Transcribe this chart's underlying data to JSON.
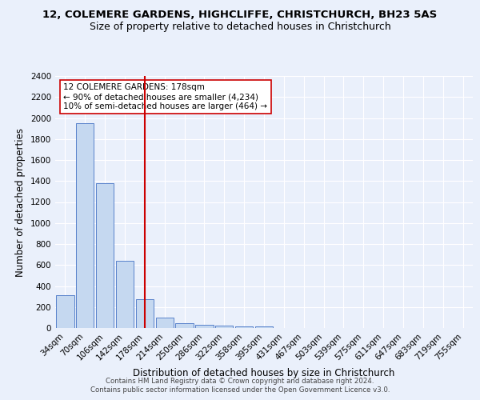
{
  "title": "12, COLEMERE GARDENS, HIGHCLIFFE, CHRISTCHURCH, BH23 5AS",
  "subtitle": "Size of property relative to detached houses in Christchurch",
  "xlabel": "Distribution of detached houses by size in Christchurch",
  "ylabel": "Number of detached properties",
  "bin_labels": [
    "34sqm",
    "70sqm",
    "106sqm",
    "142sqm",
    "178sqm",
    "214sqm",
    "250sqm",
    "286sqm",
    "322sqm",
    "358sqm",
    "395sqm",
    "431sqm",
    "467sqm",
    "503sqm",
    "539sqm",
    "575sqm",
    "611sqm",
    "647sqm",
    "683sqm",
    "719sqm",
    "755sqm"
  ],
  "bar_values": [
    315,
    1950,
    1380,
    640,
    275,
    100,
    48,
    30,
    20,
    15,
    18,
    0,
    0,
    0,
    0,
    0,
    0,
    0,
    0,
    0,
    0
  ],
  "bar_color": "#c5d8f0",
  "bar_edge_color": "#4472c4",
  "property_line_color": "#cc0000",
  "annotation_text": "12 COLEMERE GARDENS: 178sqm\n← 90% of detached houses are smaller (4,234)\n10% of semi-detached houses are larger (464) →",
  "annotation_box_color": "#ffffff",
  "annotation_box_edge_color": "#cc0000",
  "ylim": [
    0,
    2400
  ],
  "yticks": [
    0,
    200,
    400,
    600,
    800,
    1000,
    1200,
    1400,
    1600,
    1800,
    2000,
    2200,
    2400
  ],
  "footnote1": "Contains HM Land Registry data © Crown copyright and database right 2024.",
  "footnote2": "Contains public sector information licensed under the Open Government Licence v3.0.",
  "bg_color": "#eaf0fb",
  "plot_bg_color": "#eaf0fb",
  "grid_color": "#ffffff",
  "title_fontsize": 9.5,
  "subtitle_fontsize": 9,
  "label_fontsize": 8.5,
  "tick_fontsize": 7.5,
  "annot_fontsize": 7.5
}
